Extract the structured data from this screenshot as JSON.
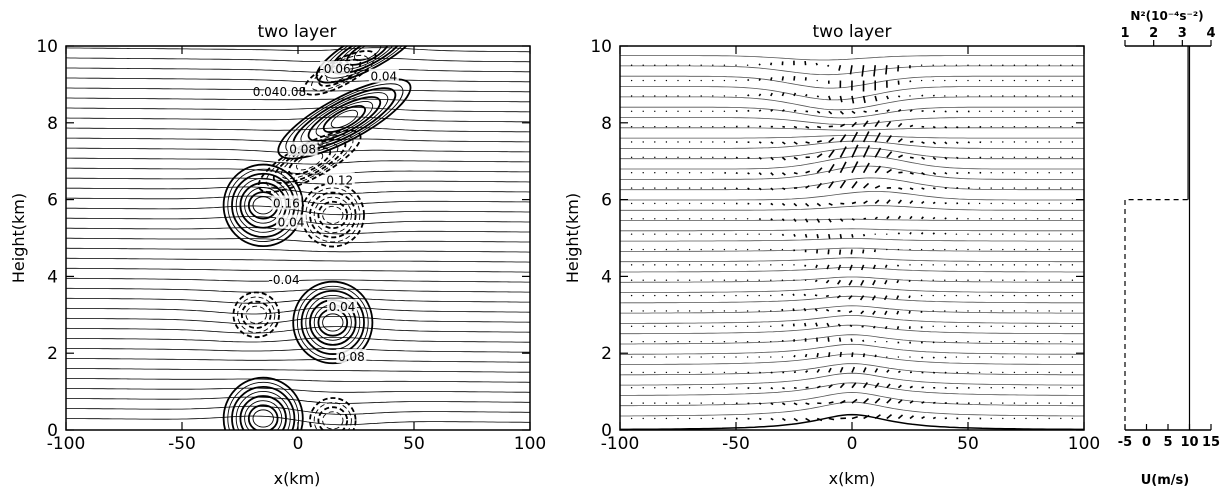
{
  "chart_data": [
    {
      "type": "contour",
      "title": "two layer",
      "xlabel": "x(km)",
      "ylabel": "Height(km)",
      "xlim": [
        -100,
        100
      ],
      "ylim": [
        0,
        10
      ],
      "xticks": [
        -100,
        -50,
        0,
        50,
        100
      ],
      "yticks": [
        0,
        2,
        4,
        6,
        8,
        10
      ],
      "streamlines": {
        "count": 38,
        "color": "#000000"
      },
      "cells": [
        {
          "x": -15,
          "z": 5.85,
          "sign": 1,
          "amp": 0.16
        },
        {
          "x": 15,
          "z": 5.6,
          "sign": -1,
          "amp": 0.12
        },
        {
          "x": -18,
          "z": 3.0,
          "sign": -1,
          "amp": 0.08
        },
        {
          "x": 15,
          "z": 2.8,
          "sign": 1,
          "amp": 0.16
        },
        {
          "x": -15,
          "z": 0.3,
          "sign": 1,
          "amp": 0.16
        },
        {
          "x": 15,
          "z": 0.25,
          "sign": -1,
          "amp": 0.08
        },
        {
          "x": 20,
          "z": 8.1,
          "sign": 1,
          "amp": 0.16
        },
        {
          "x": 5,
          "z": 7.0,
          "sign": -1,
          "amp": 0.12
        },
        {
          "x": 18,
          "z": 9.3,
          "sign": -1,
          "amp": 0.08
        },
        {
          "x": 30,
          "z": 9.85,
          "sign": 1,
          "amp": 0.12
        }
      ],
      "contour_labels": [
        {
          "text": "0.04",
          "x": -3,
          "z": 5.4
        },
        {
          "text": "0.16",
          "x": -5,
          "z": 5.9
        },
        {
          "text": "-0.04",
          "x": -6,
          "z": 3.9
        },
        {
          "text": "0.04",
          "x": 19,
          "z": 3.2
        },
        {
          "text": "0.08",
          "x": 23,
          "z": 1.9
        },
        {
          "text": "0.040.08",
          "x": -8,
          "z": 8.8
        },
        {
          "text": "-0.06",
          "x": 16,
          "z": 9.4
        },
        {
          "text": "0.04",
          "x": 37,
          "z": 9.2
        },
        {
          "text": "0.08",
          "x": 2,
          "z": 7.3
        },
        {
          "text": "0.12",
          "x": 18,
          "z": 6.5
        }
      ]
    },
    {
      "type": "vector",
      "title": "two layer",
      "xlabel": "x(km)",
      "ylabel": "Height(km)",
      "xlim": [
        -100,
        100
      ],
      "ylim": [
        0,
        10
      ],
      "xticks": [
        -100,
        -50,
        0,
        50,
        100
      ],
      "yticks": [
        0,
        2,
        4,
        6,
        8,
        10
      ],
      "streamlines": {
        "count": 36,
        "color": "#555555"
      },
      "terrain": {
        "height": 0.4,
        "halfwidth": 20
      },
      "vectors": {
        "dx": 5,
        "dz": 0.2
      }
    },
    {
      "type": "profile",
      "xlabel": "U(m/s)",
      "top_axis_label": "N²(10⁻⁴s⁻²)",
      "xlim_bottom": [
        -5,
        15
      ],
      "xticks_bottom": [
        -5,
        0,
        5,
        10,
        15
      ],
      "xlim_top": [
        1,
        4
      ],
      "xticks_top": [
        1,
        2,
        3,
        4
      ],
      "U_profile": [
        {
          "z": 0,
          "u": 10
        },
        {
          "z": 10,
          "u": 10
        }
      ],
      "N2_profile": [
        {
          "z": 0,
          "n2": 1.0
        },
        {
          "z": 6,
          "n2": 1.0
        },
        {
          "z": 6,
          "n2": 3.2
        },
        {
          "z": 10,
          "n2": 3.2
        }
      ]
    }
  ]
}
